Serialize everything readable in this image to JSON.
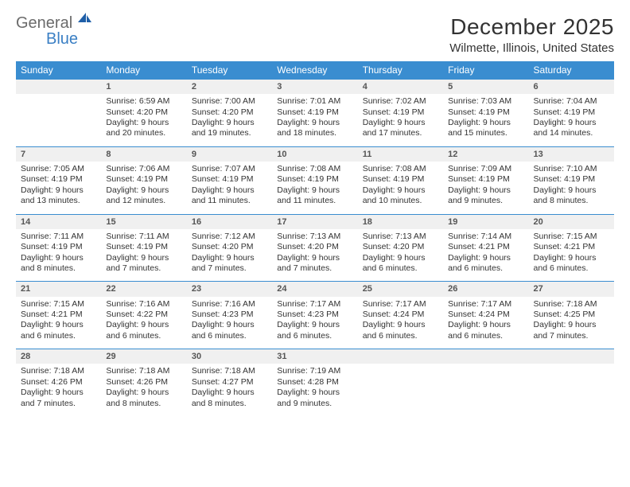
{
  "brand": {
    "part1": "General",
    "part2": "Blue"
  },
  "title": "December 2025",
  "location": "Wilmette, Illinois, United States",
  "header_bg": "#3a8dd0",
  "header_fg": "#ffffff",
  "rule_color": "#3a8dd0",
  "daynum_bg": "#f0f0f0",
  "days": [
    "Sunday",
    "Monday",
    "Tuesday",
    "Wednesday",
    "Thursday",
    "Friday",
    "Saturday"
  ],
  "weeks": [
    [
      null,
      {
        "n": "1",
        "sr": "6:59 AM",
        "ss": "4:20 PM",
        "dl": "9 hours and 20 minutes."
      },
      {
        "n": "2",
        "sr": "7:00 AM",
        "ss": "4:20 PM",
        "dl": "9 hours and 19 minutes."
      },
      {
        "n": "3",
        "sr": "7:01 AM",
        "ss": "4:19 PM",
        "dl": "9 hours and 18 minutes."
      },
      {
        "n": "4",
        "sr": "7:02 AM",
        "ss": "4:19 PM",
        "dl": "9 hours and 17 minutes."
      },
      {
        "n": "5",
        "sr": "7:03 AM",
        "ss": "4:19 PM",
        "dl": "9 hours and 15 minutes."
      },
      {
        "n": "6",
        "sr": "7:04 AM",
        "ss": "4:19 PM",
        "dl": "9 hours and 14 minutes."
      }
    ],
    [
      {
        "n": "7",
        "sr": "7:05 AM",
        "ss": "4:19 PM",
        "dl": "9 hours and 13 minutes."
      },
      {
        "n": "8",
        "sr": "7:06 AM",
        "ss": "4:19 PM",
        "dl": "9 hours and 12 minutes."
      },
      {
        "n": "9",
        "sr": "7:07 AM",
        "ss": "4:19 PM",
        "dl": "9 hours and 11 minutes."
      },
      {
        "n": "10",
        "sr": "7:08 AM",
        "ss": "4:19 PM",
        "dl": "9 hours and 11 minutes."
      },
      {
        "n": "11",
        "sr": "7:08 AM",
        "ss": "4:19 PM",
        "dl": "9 hours and 10 minutes."
      },
      {
        "n": "12",
        "sr": "7:09 AM",
        "ss": "4:19 PM",
        "dl": "9 hours and 9 minutes."
      },
      {
        "n": "13",
        "sr": "7:10 AM",
        "ss": "4:19 PM",
        "dl": "9 hours and 8 minutes."
      }
    ],
    [
      {
        "n": "14",
        "sr": "7:11 AM",
        "ss": "4:19 PM",
        "dl": "9 hours and 8 minutes."
      },
      {
        "n": "15",
        "sr": "7:11 AM",
        "ss": "4:19 PM",
        "dl": "9 hours and 7 minutes."
      },
      {
        "n": "16",
        "sr": "7:12 AM",
        "ss": "4:20 PM",
        "dl": "9 hours and 7 minutes."
      },
      {
        "n": "17",
        "sr": "7:13 AM",
        "ss": "4:20 PM",
        "dl": "9 hours and 7 minutes."
      },
      {
        "n": "18",
        "sr": "7:13 AM",
        "ss": "4:20 PM",
        "dl": "9 hours and 6 minutes."
      },
      {
        "n": "19",
        "sr": "7:14 AM",
        "ss": "4:21 PM",
        "dl": "9 hours and 6 minutes."
      },
      {
        "n": "20",
        "sr": "7:15 AM",
        "ss": "4:21 PM",
        "dl": "9 hours and 6 minutes."
      }
    ],
    [
      {
        "n": "21",
        "sr": "7:15 AM",
        "ss": "4:21 PM",
        "dl": "9 hours and 6 minutes."
      },
      {
        "n": "22",
        "sr": "7:16 AM",
        "ss": "4:22 PM",
        "dl": "9 hours and 6 minutes."
      },
      {
        "n": "23",
        "sr": "7:16 AM",
        "ss": "4:23 PM",
        "dl": "9 hours and 6 minutes."
      },
      {
        "n": "24",
        "sr": "7:17 AM",
        "ss": "4:23 PM",
        "dl": "9 hours and 6 minutes."
      },
      {
        "n": "25",
        "sr": "7:17 AM",
        "ss": "4:24 PM",
        "dl": "9 hours and 6 minutes."
      },
      {
        "n": "26",
        "sr": "7:17 AM",
        "ss": "4:24 PM",
        "dl": "9 hours and 6 minutes."
      },
      {
        "n": "27",
        "sr": "7:18 AM",
        "ss": "4:25 PM",
        "dl": "9 hours and 7 minutes."
      }
    ],
    [
      {
        "n": "28",
        "sr": "7:18 AM",
        "ss": "4:26 PM",
        "dl": "9 hours and 7 minutes."
      },
      {
        "n": "29",
        "sr": "7:18 AM",
        "ss": "4:26 PM",
        "dl": "9 hours and 8 minutes."
      },
      {
        "n": "30",
        "sr": "7:18 AM",
        "ss": "4:27 PM",
        "dl": "9 hours and 8 minutes."
      },
      {
        "n": "31",
        "sr": "7:19 AM",
        "ss": "4:28 PM",
        "dl": "9 hours and 9 minutes."
      },
      null,
      null,
      null
    ]
  ],
  "labels": {
    "sunrise": "Sunrise:",
    "sunset": "Sunset:",
    "daylight": "Daylight:"
  }
}
